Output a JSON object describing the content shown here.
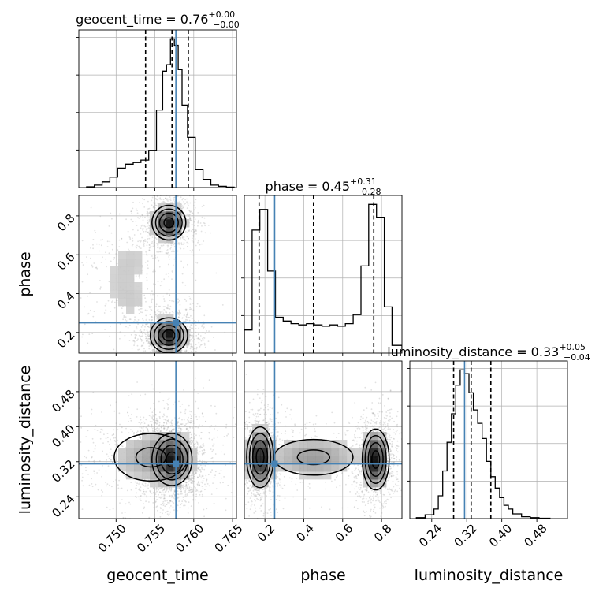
{
  "chart_data": {
    "type": "corner",
    "parameters": [
      "geocent_time",
      "phase",
      "luminosity_distance"
    ],
    "titles": [
      {
        "param": "geocent_time",
        "prefix": "geocent_time = 0.76",
        "sup": "+0.00",
        "sub": "−0.00"
      },
      {
        "param": "phase",
        "prefix": "phase = 0.45",
        "sup": "+0.31",
        "sub": "−0.28"
      },
      {
        "param": "luminosity_distance",
        "prefix": "luminosity_distance = 0.33",
        "sup": "+0.05",
        "sub": "−0.04"
      }
    ],
    "axis_labels": {
      "x": [
        "geocent_time",
        "phase",
        "luminosity_distance"
      ],
      "y": [
        "phase",
        "luminosity_distance"
      ]
    },
    "ranges": {
      "geocent_time": [
        0.7452,
        0.7655
      ],
      "phase": [
        0.094,
        0.905
      ],
      "luminosity_distance": [
        0.19,
        0.55
      ]
    },
    "ticks": {
      "geocent_time": [
        "0.750",
        "0.755",
        "0.760",
        "0.765"
      ],
      "phase": [
        "0.2",
        "0.4",
        "0.6",
        "0.8"
      ],
      "luminosity_distance": [
        "0.24",
        "0.32",
        "0.40",
        "0.48"
      ]
    },
    "injection": {
      "geocent_time": 0.7577,
      "phase": 0.25,
      "luminosity_distance": 0.315
    },
    "quantiles": {
      "geocent_time": [
        0.7538,
        0.7572,
        0.7593
      ],
      "phase": [
        0.17,
        0.45,
        0.76
      ],
      "luminosity_distance": [
        0.29,
        0.33,
        0.375
      ]
    },
    "histograms": {
      "geocent_time": {
        "edges": [
          0.7462,
          0.7472,
          0.7482,
          0.7492,
          0.7502,
          0.7512,
          0.7522,
          0.7532,
          0.7542,
          0.7552,
          0.756,
          0.7565,
          0.757,
          0.7575,
          0.758,
          0.7585,
          0.7592,
          0.7602,
          0.7612,
          0.7622,
          0.7632,
          0.7642,
          0.7652
        ],
        "counts": [
          0.5,
          1.5,
          3.5,
          6.5,
          12,
          14.5,
          15.5,
          17,
          23,
          48,
          72,
          76,
          92,
          88,
          73,
          51,
          31,
          11,
          5,
          1.5,
          0.8,
          0.3
        ]
      },
      "phase": {
        "edges": [
          0.094,
          0.134,
          0.174,
          0.214,
          0.254,
          0.294,
          0.334,
          0.374,
          0.414,
          0.454,
          0.494,
          0.534,
          0.574,
          0.614,
          0.654,
          0.694,
          0.734,
          0.774,
          0.814,
          0.854,
          0.905
        ],
        "counts": [
          9,
          48,
          56,
          32,
          14,
          12.5,
          11.5,
          11,
          11.5,
          11,
          10.5,
          11,
          10.5,
          11.5,
          15,
          34,
          58,
          53,
          18,
          3
        ]
      },
      "luminosity_distance": {
        "edges": [
          0.205,
          0.225,
          0.245,
          0.255,
          0.265,
          0.275,
          0.285,
          0.295,
          0.305,
          0.315,
          0.325,
          0.335,
          0.345,
          0.355,
          0.365,
          0.375,
          0.385,
          0.395,
          0.405,
          0.415,
          0.425,
          0.445,
          0.465,
          0.485,
          0.51
        ],
        "counts": [
          0.5,
          2,
          5,
          12,
          25,
          40,
          55,
          70,
          78,
          76,
          66,
          57,
          50,
          42,
          30,
          22,
          16,
          11,
          7,
          5,
          2.5,
          1,
          0.5,
          0.2
        ]
      }
    },
    "density_modes": {
      "phase_vs_geocent_time": [
        {
          "x": 0.7568,
          "y": 0.765,
          "sx": 0.0011,
          "sy": 0.045,
          "w": 1.0
        },
        {
          "x": 0.7568,
          "y": 0.185,
          "sx": 0.0012,
          "sy": 0.045,
          "w": 1.05
        },
        {
          "x": 0.7508,
          "y": 0.47,
          "sx": 0.0025,
          "sy": 0.1,
          "w": 0.12
        },
        {
          "x": 0.7525,
          "y": 0.6,
          "sx": 0.0025,
          "sy": 0.07,
          "w": 0.1
        },
        {
          "x": 0.7525,
          "y": 0.34,
          "sx": 0.0025,
          "sy": 0.07,
          "w": 0.1
        }
      ],
      "luminosity_distance_vs_geocent_time": [
        {
          "x": 0.7572,
          "y": 0.325,
          "sx": 0.0013,
          "sy": 0.03,
          "w": 1.0
        },
        {
          "x": 0.7545,
          "y": 0.33,
          "sx": 0.0035,
          "sy": 0.04,
          "w": 0.35
        }
      ],
      "luminosity_distance_vs_phase": [
        {
          "x": 0.175,
          "y": 0.33,
          "sx": 0.035,
          "sy": 0.035,
          "w": 1.0
        },
        {
          "x": 0.77,
          "y": 0.325,
          "sx": 0.035,
          "sy": 0.035,
          "w": 1.0
        },
        {
          "x": 0.45,
          "y": 0.33,
          "sx": 0.15,
          "sy": 0.03,
          "w": 0.35
        }
      ]
    },
    "colors": {
      "truth": "#4682b4",
      "line": "#000000",
      "grid": "#b0b0b0",
      "scatter": "#aaaaaa"
    }
  }
}
